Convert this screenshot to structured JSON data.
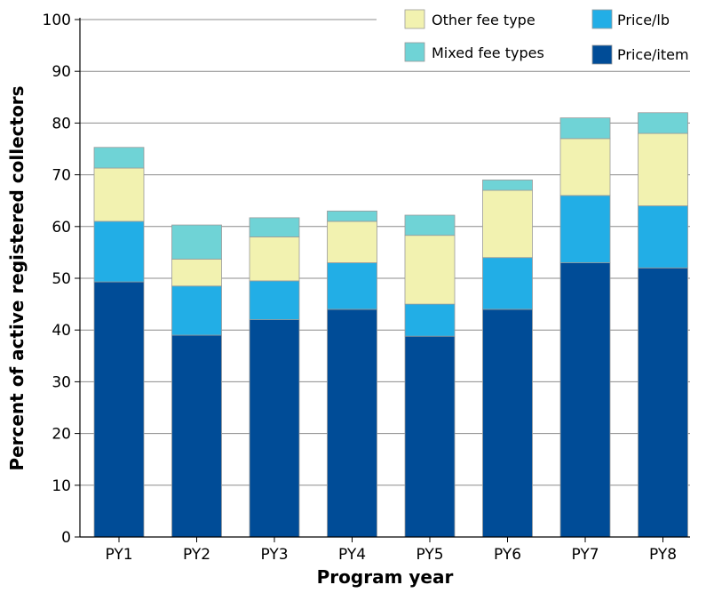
{
  "chart_data": {
    "type": "bar",
    "stacked": true,
    "xlabel": "Program year",
    "ylabel": "Percent of active registered collectors",
    "ylim": [
      0,
      100
    ],
    "yticks": [
      0,
      10,
      20,
      30,
      40,
      50,
      60,
      70,
      80,
      90,
      100
    ],
    "grid": true,
    "legend_position": "top-right",
    "categories": [
      "PY1",
      "PY2",
      "PY3",
      "PY4",
      "PY5",
      "PY6",
      "PY7",
      "PY8"
    ],
    "series": [
      {
        "name": "Price/item",
        "color": "#004c97",
        "values": [
          49.3,
          39,
          42,
          44,
          38.8,
          44,
          53,
          52
        ]
      },
      {
        "name": "Price/lb",
        "color": "#22aee6",
        "values": [
          11.7,
          9.5,
          7.5,
          9,
          6.2,
          10,
          13,
          12
        ]
      },
      {
        "name": "Other fee type",
        "color": "#f2f2b0",
        "values": [
          10.3,
          5.2,
          8.5,
          8,
          13.3,
          13,
          11,
          14
        ]
      },
      {
        "name": "Mixed fee types",
        "color": "#6fd3d6",
        "values": [
          4,
          6.6,
          3.7,
          2,
          3.9,
          2,
          4,
          4
        ]
      }
    ]
  }
}
